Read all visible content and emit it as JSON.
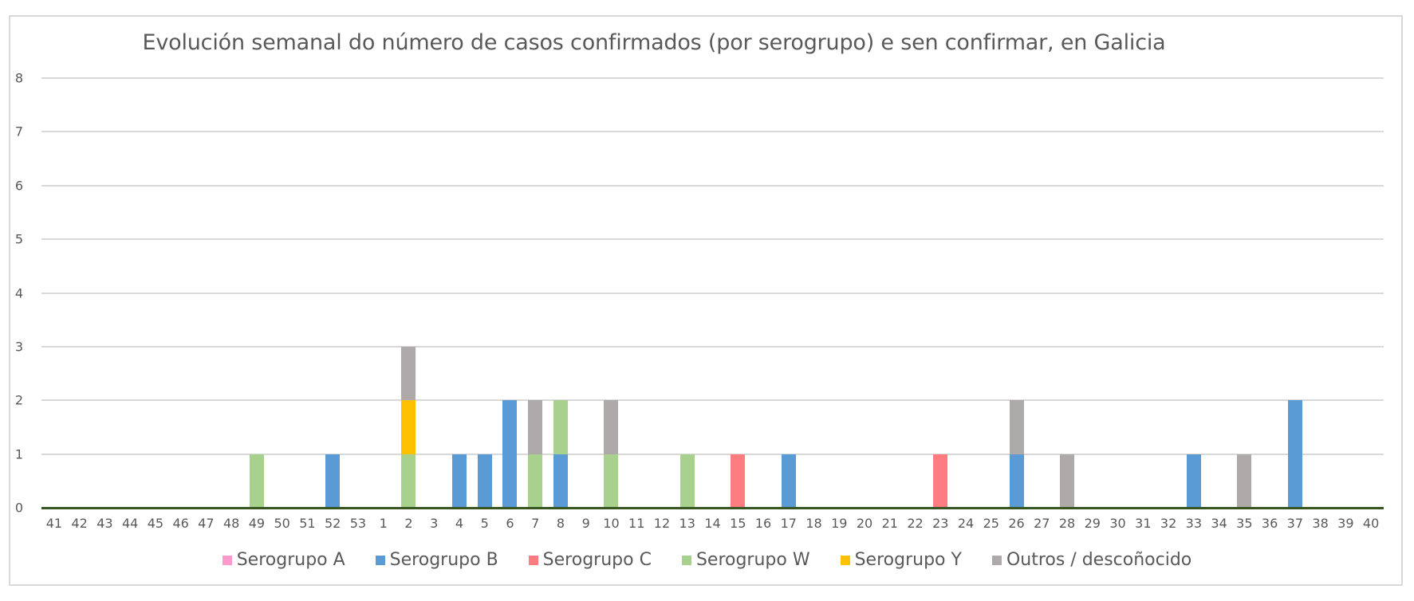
{
  "chart_data": {
    "type": "bar",
    "stacked": true,
    "title": "Evolución semanal do número de casos confirmados (por serogrupo) e sen confirmar, en Galicia",
    "xlabel": "",
    "ylabel": "",
    "ylim": [
      0,
      8
    ],
    "yticks": [
      "0",
      "1",
      "2",
      "3",
      "4",
      "5",
      "6",
      "7",
      "8"
    ],
    "grid": true,
    "legend_position": "bottom",
    "categories": [
      "41",
      "42",
      "43",
      "44",
      "45",
      "46",
      "47",
      "48",
      "49",
      "50",
      "51",
      "52",
      "53",
      "1",
      "2",
      "3",
      "4",
      "5",
      "6",
      "7",
      "8",
      "9",
      "10",
      "11",
      "12",
      "13",
      "14",
      "15",
      "16",
      "17",
      "18",
      "19",
      "20",
      "21",
      "22",
      "23",
      "24",
      "25",
      "26",
      "27",
      "28",
      "29",
      "30",
      "31",
      "32",
      "33",
      "34",
      "35",
      "36",
      "37",
      "38",
      "39",
      "40"
    ],
    "series": [
      {
        "name": "Serogrupo A",
        "color": "#ff99cc",
        "values": [
          0,
          0,
          0,
          0,
          0,
          0,
          0,
          0,
          0,
          0,
          0,
          0,
          0,
          0,
          0,
          0,
          0,
          0,
          0,
          0,
          0,
          0,
          0,
          0,
          0,
          0,
          0,
          0,
          0,
          0,
          0,
          0,
          0,
          0,
          0,
          0,
          0,
          0,
          0,
          0,
          0,
          0,
          0,
          0,
          0,
          0,
          0,
          0,
          0,
          0,
          0,
          0,
          0
        ]
      },
      {
        "name": "Serogrupo B",
        "color": "#5b9bd5",
        "values": [
          0,
          0,
          0,
          0,
          0,
          0,
          0,
          0,
          0,
          0,
          0,
          1,
          0,
          0,
          0,
          0,
          1,
          1,
          2,
          0,
          1,
          0,
          0,
          0,
          0,
          0,
          0,
          0,
          0,
          1,
          0,
          0,
          0,
          0,
          0,
          0,
          0,
          0,
          1,
          0,
          0,
          0,
          0,
          0,
          0,
          1,
          0,
          0,
          0,
          2,
          0,
          0,
          0
        ]
      },
      {
        "name": "Serogrupo C",
        "color": "#ff7c80",
        "values": [
          0,
          0,
          0,
          0,
          0,
          0,
          0,
          0,
          0,
          0,
          0,
          0,
          0,
          0,
          0,
          0,
          0,
          0,
          0,
          0,
          0,
          0,
          0,
          0,
          0,
          0,
          0,
          1,
          0,
          0,
          0,
          0,
          0,
          0,
          0,
          1,
          0,
          0,
          0,
          0,
          0,
          0,
          0,
          0,
          0,
          0,
          0,
          0,
          0,
          0,
          0,
          0,
          0
        ]
      },
      {
        "name": "Serogrupo W",
        "color": "#a9d18e",
        "values": [
          0,
          0,
          0,
          0,
          0,
          0,
          0,
          0,
          1,
          0,
          0,
          0,
          0,
          0,
          1,
          0,
          0,
          0,
          0,
          1,
          1,
          0,
          1,
          0,
          0,
          1,
          0,
          0,
          0,
          0,
          0,
          0,
          0,
          0,
          0,
          0,
          0,
          0,
          0,
          0,
          0,
          0,
          0,
          0,
          0,
          0,
          0,
          0,
          0,
          0,
          0,
          0,
          0
        ]
      },
      {
        "name": "Serogrupo Y",
        "color": "#ffc000",
        "values": [
          0,
          0,
          0,
          0,
          0,
          0,
          0,
          0,
          0,
          0,
          0,
          0,
          0,
          0,
          1,
          0,
          0,
          0,
          0,
          0,
          0,
          0,
          0,
          0,
          0,
          0,
          0,
          0,
          0,
          0,
          0,
          0,
          0,
          0,
          0,
          0,
          0,
          0,
          0,
          0,
          0,
          0,
          0,
          0,
          0,
          0,
          0,
          0,
          0,
          0,
          0,
          0,
          0
        ]
      },
      {
        "name": "Outros / descoñocido",
        "color": "#aeaaaa",
        "values": [
          0,
          0,
          0,
          0,
          0,
          0,
          0,
          0,
          0,
          0,
          0,
          0,
          0,
          0,
          1,
          0,
          0,
          0,
          0,
          1,
          0,
          0,
          1,
          0,
          0,
          0,
          0,
          0,
          0,
          0,
          0,
          0,
          0,
          0,
          0,
          0,
          0,
          0,
          1,
          0,
          1,
          0,
          0,
          0,
          0,
          0,
          0,
          1,
          0,
          0,
          0,
          0,
          0
        ]
      }
    ]
  },
  "legend": {
    "items": [
      {
        "label": "Serogrupo A",
        "color": "#ff99cc"
      },
      {
        "label": "Serogrupo B",
        "color": "#5b9bd5"
      },
      {
        "label": "Serogrupo C",
        "color": "#ff7c80"
      },
      {
        "label": "Serogrupo W",
        "color": "#a9d18e"
      },
      {
        "label": "Serogrupo Y",
        "color": "#ffc000"
      },
      {
        "label": "Outros / descoñocido",
        "color": "#aeaaaa"
      }
    ]
  }
}
